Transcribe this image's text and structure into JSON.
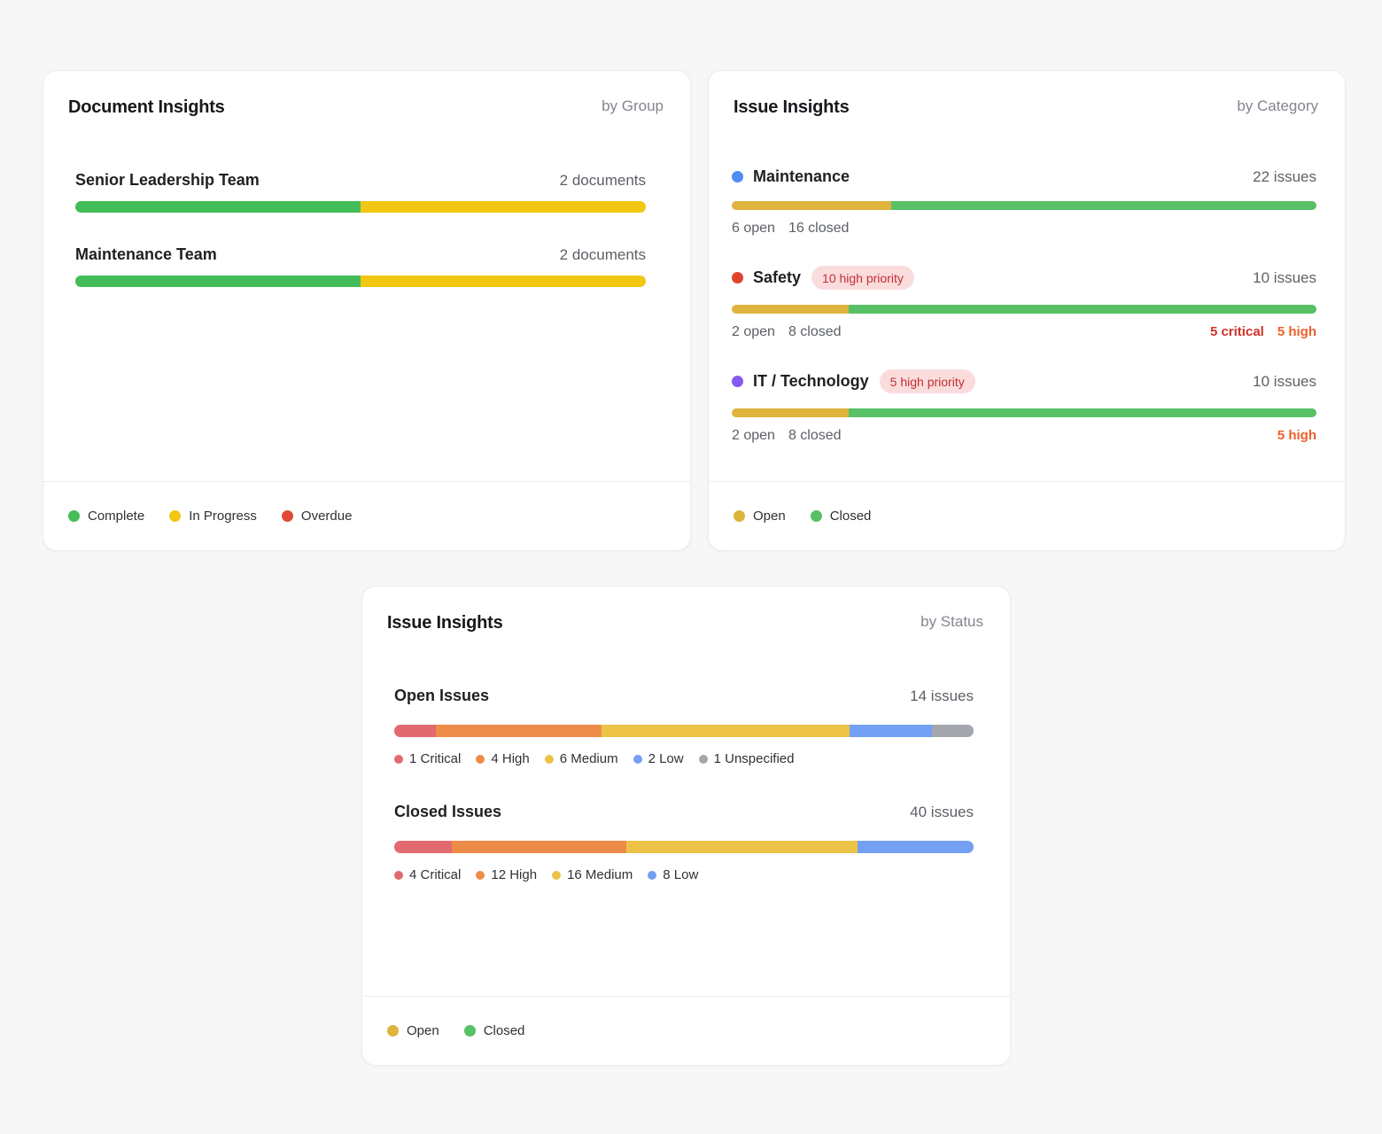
{
  "colors": {
    "doc_complete": "#43bd59",
    "doc_in_progress": "#f2c713",
    "doc_overdue": "#e04b38",
    "issue_open": "#deb33e",
    "issue_closed": "#58c065",
    "critical": "#e26970",
    "high": "#ed8c49",
    "medium": "#ecc347",
    "low": "#73a0f2",
    "unspecified": "#a3a7ad"
  },
  "cards": {
    "documents": {
      "title": "Document Insights",
      "subtitle": "by Group",
      "rows": [
        {
          "label": "Senior Leadership Team",
          "count": "2 documents",
          "bar": [
            {
              "color": "#43bd59",
              "pct": 50
            },
            {
              "color": "#f2c713",
              "pct": 50
            }
          ]
        },
        {
          "label": "Maintenance Team",
          "count": "2 documents",
          "bar": [
            {
              "color": "#43bd59",
              "pct": 50
            },
            {
              "color": "#f2c713",
              "pct": 50
            }
          ]
        }
      ],
      "legend": [
        {
          "color": "#43bd59",
          "label": "Complete"
        },
        {
          "color": "#f2c713",
          "label": "In Progress"
        },
        {
          "color": "#e04b38",
          "label": "Overdue"
        }
      ]
    },
    "issuesByCategory": {
      "title": "Issue Insights",
      "subtitle": "by Category",
      "rows": [
        {
          "dot_color": "#4e8ef5",
          "label": "Maintenance",
          "count": "22 issues",
          "bar": [
            {
              "color": "#deb33e",
              "pct": 27.27
            },
            {
              "color": "#58c065",
              "pct": 72.73
            }
          ],
          "sub_open": "6 open",
          "sub_closed": "16 closed"
        },
        {
          "dot_color": "#e0442f",
          "label": "Safety",
          "badge": "10 high priority",
          "count": "10 issues",
          "bar": [
            {
              "color": "#deb33e",
              "pct": 20
            },
            {
              "color": "#58c065",
              "pct": 80
            }
          ],
          "sub_open": "2 open",
          "sub_closed": "8 closed",
          "highlight_critical": {
            "text": "5 critical",
            "color": "#d23228"
          },
          "highlight_high": {
            "text": "5 high",
            "color": "#ee5e28"
          }
        },
        {
          "dot_color": "#8659f0",
          "label": "IT / Technology",
          "badge": "5 high priority",
          "count": "10 issues",
          "bar": [
            {
              "color": "#deb33e",
              "pct": 20
            },
            {
              "color": "#58c065",
              "pct": 80
            }
          ],
          "sub_open": "2 open",
          "sub_closed": "8 closed",
          "highlight_high": {
            "text": "5 high",
            "color": "#ee5e28"
          }
        }
      ],
      "legend": [
        {
          "color": "#deb33e",
          "label": "Open"
        },
        {
          "color": "#58c065",
          "label": "Closed"
        }
      ]
    },
    "issuesByStatus": {
      "title": "Issue Insights",
      "subtitle": "by Status",
      "sections": [
        {
          "label": "Open Issues",
          "count": "14 issues",
          "bar": [
            {
              "color": "#e26970",
              "pct": 7.14
            },
            {
              "color": "#ed8c49",
              "pct": 28.57
            },
            {
              "color": "#ecc347",
              "pct": 42.86
            },
            {
              "color": "#73a0f2",
              "pct": 14.29
            },
            {
              "color": "#a3a7ad",
              "pct": 7.14
            }
          ],
          "legend": [
            {
              "color": "#e26970",
              "label": "1 Critical"
            },
            {
              "color": "#ed8c49",
              "label": "4 High"
            },
            {
              "color": "#ecc347",
              "label": "6 Medium"
            },
            {
              "color": "#73a0f2",
              "label": "2 Low"
            },
            {
              "color": "#a3a7ad",
              "label": "1 Unspecified"
            }
          ]
        },
        {
          "label": "Closed Issues",
          "count": "40 issues",
          "bar": [
            {
              "color": "#e26970",
              "pct": 10
            },
            {
              "color": "#ed8c49",
              "pct": 30
            },
            {
              "color": "#ecc347",
              "pct": 40
            },
            {
              "color": "#73a0f2",
              "pct": 20
            }
          ],
          "legend": [
            {
              "color": "#e26970",
              "label": "4 Critical"
            },
            {
              "color": "#ed8c49",
              "label": "12 High"
            },
            {
              "color": "#ecc347",
              "label": "16 Medium"
            },
            {
              "color": "#73a0f2",
              "label": "8 Low"
            }
          ]
        }
      ],
      "legend": [
        {
          "color": "#deb33e",
          "label": "Open"
        },
        {
          "color": "#58c065",
          "label": "Closed"
        }
      ]
    }
  },
  "chart_data": [
    {
      "type": "bar",
      "title": "Document Insights",
      "subtitle": "by Group",
      "orientation": "horizontal-stacked",
      "categories": [
        "Senior Leadership Team",
        "Maintenance Team"
      ],
      "totals_label": [
        "2 documents",
        "2 documents"
      ],
      "series": [
        {
          "name": "Complete",
          "values": [
            1,
            1
          ]
        },
        {
          "name": "In Progress",
          "values": [
            1,
            1
          ]
        },
        {
          "name": "Overdue",
          "values": [
            0,
            0
          ]
        }
      ],
      "legend": [
        "Complete",
        "In Progress",
        "Overdue"
      ],
      "legend_position": "bottom"
    },
    {
      "type": "bar",
      "title": "Issue Insights",
      "subtitle": "by Category",
      "orientation": "horizontal-stacked",
      "categories": [
        "Maintenance",
        "Safety",
        "IT / Technology"
      ],
      "totals": [
        22,
        10,
        10
      ],
      "totals_label": [
        "22 issues",
        "10 issues",
        "10 issues"
      ],
      "series": [
        {
          "name": "Open",
          "values": [
            6,
            2,
            2
          ]
        },
        {
          "name": "Closed",
          "values": [
            16,
            8,
            8
          ]
        }
      ],
      "badges": [
        null,
        "10 high priority",
        "5 high priority"
      ],
      "annotations": [
        null,
        "5 critical, 5 high",
        "5 high"
      ],
      "legend": [
        "Open",
        "Closed"
      ],
      "legend_position": "bottom"
    },
    {
      "type": "bar",
      "title": "Issue Insights",
      "subtitle": "by Status",
      "orientation": "horizontal-stacked",
      "categories": [
        "Open Issues",
        "Closed Issues"
      ],
      "totals": [
        14,
        40
      ],
      "totals_label": [
        "14 issues",
        "40 issues"
      ],
      "series": [
        {
          "name": "Critical",
          "values": [
            1,
            4
          ]
        },
        {
          "name": "High",
          "values": [
            4,
            12
          ]
        },
        {
          "name": "Medium",
          "values": [
            6,
            16
          ]
        },
        {
          "name": "Low",
          "values": [
            2,
            8
          ]
        },
        {
          "name": "Unspecified",
          "values": [
            1,
            0
          ]
        }
      ],
      "legend": [
        "Open",
        "Closed"
      ],
      "legend_position": "bottom"
    }
  ]
}
